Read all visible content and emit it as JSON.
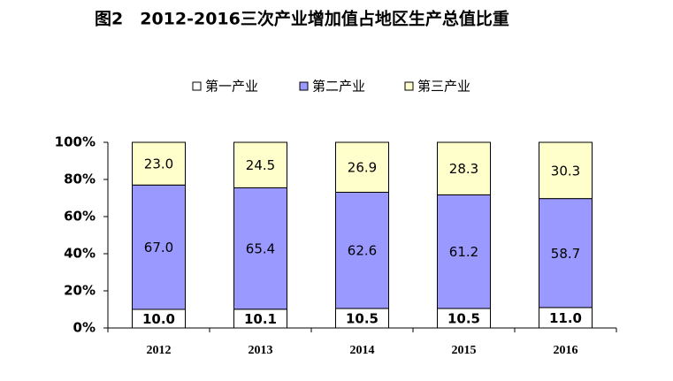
{
  "chart_data": {
    "type": "stacked_bar",
    "title": "图2　2012-2016三次产业增加值占地区生产总值比重",
    "categories": [
      "2012",
      "2013",
      "2014",
      "2015",
      "2016"
    ],
    "series": [
      {
        "name": "第一产业",
        "color": "#ffffff",
        "values": [
          10.0,
          10.1,
          10.5,
          10.5,
          11.0
        ],
        "value_labels": [
          "10.0",
          "10.1",
          "10.5",
          "10.5",
          "11.0"
        ]
      },
      {
        "name": "第二产业",
        "color": "#9999ff",
        "values": [
          67.0,
          65.4,
          62.6,
          61.2,
          58.7
        ],
        "value_labels": [
          "67.0",
          "65.4",
          "62.6",
          "61.2",
          "58.7"
        ]
      },
      {
        "name": "第三产业",
        "color": "#ffffcc",
        "values": [
          23.0,
          24.5,
          26.9,
          28.3,
          30.3
        ],
        "value_labels": [
          "23.0",
          "24.5",
          "26.9",
          "28.3",
          "30.3"
        ]
      }
    ],
    "ylim": [
      0,
      100
    ],
    "yticks": [
      {
        "value": 0,
        "label": "0%"
      },
      {
        "value": 20,
        "label": "20%"
      },
      {
        "value": 40,
        "label": "40%"
      },
      {
        "value": 60,
        "label": "60%"
      },
      {
        "value": 80,
        "label": "80%"
      },
      {
        "value": 100,
        "label": "100%"
      }
    ],
    "legend": "top"
  }
}
